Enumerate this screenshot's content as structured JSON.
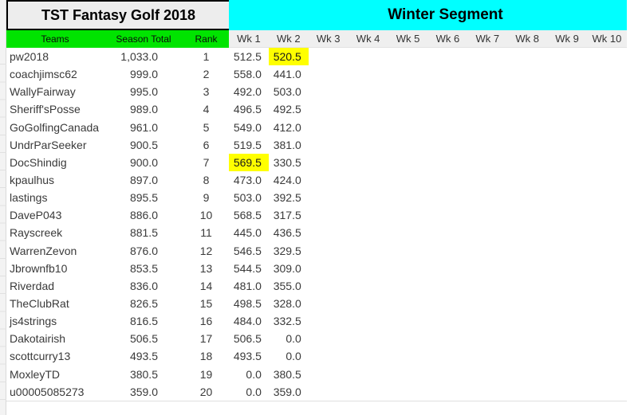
{
  "title": "TST Fantasy Golf 2018",
  "segment_title": "Winter Segment",
  "columns": {
    "teams": "Teams",
    "season_total": "Season Total",
    "rank": "Rank",
    "weeks": [
      "Wk 1",
      "Wk 2",
      "Wk 3",
      "Wk 4",
      "Wk 5",
      "Wk 6",
      "Wk 7",
      "Wk 8",
      "Wk 9",
      "Wk 10"
    ]
  },
  "colors": {
    "header_green": "#00e400",
    "segment_cyan": "#00ffff",
    "highlight_yellow": "#ffff00",
    "title_cell_gray": "#ededed",
    "week_header_gray": "#efefef"
  },
  "rows": [
    {
      "team": "pw2018",
      "season_total": "1,033.0",
      "rank": "1",
      "weeks": [
        "512.5",
        "520.5",
        "",
        "",
        "",
        "",
        "",
        "",
        "",
        ""
      ],
      "highlight_week": 2
    },
    {
      "team": "coachjimsc62",
      "season_total": "999.0",
      "rank": "2",
      "weeks": [
        "558.0",
        "441.0",
        "",
        "",
        "",
        "",
        "",
        "",
        "",
        ""
      ],
      "highlight_week": 0
    },
    {
      "team": "WallyFairway",
      "season_total": "995.0",
      "rank": "3",
      "weeks": [
        "492.0",
        "503.0",
        "",
        "",
        "",
        "",
        "",
        "",
        "",
        ""
      ],
      "highlight_week": 0
    },
    {
      "team": "Sheriff'sPosse",
      "season_total": "989.0",
      "rank": "4",
      "weeks": [
        "496.5",
        "492.5",
        "",
        "",
        "",
        "",
        "",
        "",
        "",
        ""
      ],
      "highlight_week": 0
    },
    {
      "team": "GoGolfingCanada",
      "season_total": "961.0",
      "rank": "5",
      "weeks": [
        "549.0",
        "412.0",
        "",
        "",
        "",
        "",
        "",
        "",
        "",
        ""
      ],
      "highlight_week": 0
    },
    {
      "team": "UndrParSeeker",
      "season_total": "900.5",
      "rank": "6",
      "weeks": [
        "519.5",
        "381.0",
        "",
        "",
        "",
        "",
        "",
        "",
        "",
        ""
      ],
      "highlight_week": 0
    },
    {
      "team": "DocShindig",
      "season_total": "900.0",
      "rank": "7",
      "weeks": [
        "569.5",
        "330.5",
        "",
        "",
        "",
        "",
        "",
        "",
        "",
        ""
      ],
      "highlight_week": 1
    },
    {
      "team": "kpaulhus",
      "season_total": "897.0",
      "rank": "8",
      "weeks": [
        "473.0",
        "424.0",
        "",
        "",
        "",
        "",
        "",
        "",
        "",
        ""
      ],
      "highlight_week": 0
    },
    {
      "team": "lastings",
      "season_total": "895.5",
      "rank": "9",
      "weeks": [
        "503.0",
        "392.5",
        "",
        "",
        "",
        "",
        "",
        "",
        "",
        ""
      ],
      "highlight_week": 0
    },
    {
      "team": "DaveP043",
      "season_total": "886.0",
      "rank": "10",
      "weeks": [
        "568.5",
        "317.5",
        "",
        "",
        "",
        "",
        "",
        "",
        "",
        ""
      ],
      "highlight_week": 0
    },
    {
      "team": "Rayscreek",
      "season_total": "881.5",
      "rank": "11",
      "weeks": [
        "445.0",
        "436.5",
        "",
        "",
        "",
        "",
        "",
        "",
        "",
        ""
      ],
      "highlight_week": 0
    },
    {
      "team": "WarrenZevon",
      "season_total": "876.0",
      "rank": "12",
      "weeks": [
        "546.5",
        "329.5",
        "",
        "",
        "",
        "",
        "",
        "",
        "",
        ""
      ],
      "highlight_week": 0
    },
    {
      "team": "Jbrownfb10",
      "season_total": "853.5",
      "rank": "13",
      "weeks": [
        "544.5",
        "309.0",
        "",
        "",
        "",
        "",
        "",
        "",
        "",
        ""
      ],
      "highlight_week": 0
    },
    {
      "team": "Riverdad",
      "season_total": "836.0",
      "rank": "14",
      "weeks": [
        "481.0",
        "355.0",
        "",
        "",
        "",
        "",
        "",
        "",
        "",
        ""
      ],
      "highlight_week": 0
    },
    {
      "team": "TheClubRat",
      "season_total": "826.5",
      "rank": "15",
      "weeks": [
        "498.5",
        "328.0",
        "",
        "",
        "",
        "",
        "",
        "",
        "",
        ""
      ],
      "highlight_week": 0
    },
    {
      "team": "js4strings",
      "season_total": "816.5",
      "rank": "16",
      "weeks": [
        "484.0",
        "332.5",
        "",
        "",
        "",
        "",
        "",
        "",
        "",
        ""
      ],
      "highlight_week": 0
    },
    {
      "team": "Dakotairish",
      "season_total": "506.5",
      "rank": "17",
      "weeks": [
        "506.5",
        "0.0",
        "",
        "",
        "",
        "",
        "",
        "",
        "",
        ""
      ],
      "highlight_week": 0
    },
    {
      "team": "scottcurry13",
      "season_total": "493.5",
      "rank": "18",
      "weeks": [
        "493.5",
        "0.0",
        "",
        "",
        "",
        "",
        "",
        "",
        "",
        ""
      ],
      "highlight_week": 0
    },
    {
      "team": "MoxleyTD",
      "season_total": "380.5",
      "rank": "19",
      "weeks": [
        "0.0",
        "380.5",
        "",
        "",
        "",
        "",
        "",
        "",
        "",
        ""
      ],
      "highlight_week": 0
    },
    {
      "team": "u00005085273",
      "season_total": "359.0",
      "rank": "20",
      "weeks": [
        "0.0",
        "359.0",
        "",
        "",
        "",
        "",
        "",
        "",
        "",
        ""
      ],
      "highlight_week": 0
    }
  ]
}
